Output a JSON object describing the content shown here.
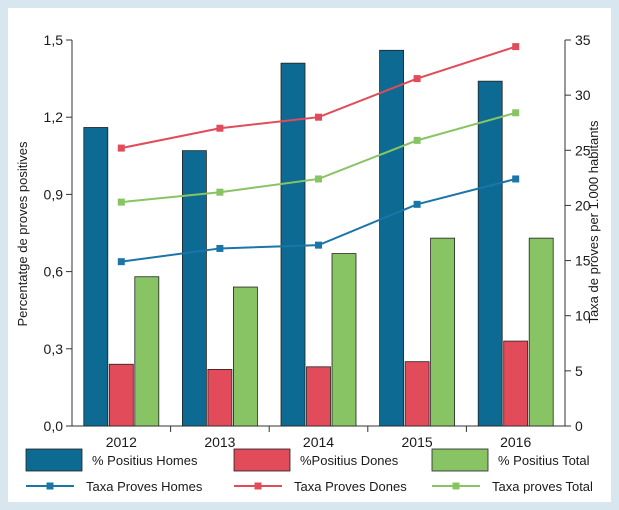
{
  "chart_data": {
    "type": "bar",
    "categories": [
      "2012",
      "2013",
      "2014",
      "2015",
      "2016"
    ],
    "y_left": {
      "label": "Percentatge de proves positives",
      "range": [
        0,
        1.5
      ],
      "ticks": [
        "0,0",
        "0,3",
        "0,6",
        "0,9",
        "1,2",
        "1,5"
      ],
      "tick_values": [
        0,
        0.3,
        0.6,
        0.9,
        1.2,
        1.5
      ]
    },
    "y_right": {
      "label": "Taxa de proves per 1.000 habitants",
      "range": [
        0,
        35
      ],
      "ticks": [
        "0",
        "5",
        "10",
        "15",
        "20",
        "25",
        "30",
        "35"
      ],
      "tick_values": [
        0,
        5,
        10,
        15,
        20,
        25,
        30,
        35
      ]
    },
    "bar_series": [
      {
        "name": "% Positius Homes",
        "color": "#0d6a93",
        "values": [
          1.16,
          1.07,
          1.41,
          1.46,
          1.34
        ]
      },
      {
        "name": "%Positius Dones",
        "color": "#e14b5a",
        "values": [
          0.24,
          0.22,
          0.23,
          0.25,
          0.33
        ]
      },
      {
        "name": "% Positius Total",
        "color": "#88c464",
        "values": [
          0.58,
          0.54,
          0.67,
          0.73,
          0.73
        ]
      }
    ],
    "line_series": [
      {
        "name": "Taxa Proves Homes",
        "color": "#1a75a8",
        "values": [
          14.9,
          16.1,
          16.4,
          20.1,
          22.4
        ]
      },
      {
        "name": "Taxa Proves Dones",
        "color": "#e14b5a",
        "values": [
          25.2,
          27.0,
          28.0,
          31.5,
          34.4
        ]
      },
      {
        "name": "Taxa proves Total",
        "color": "#88c464",
        "values": [
          20.3,
          21.2,
          22.4,
          25.9,
          28.4
        ]
      }
    ],
    "grid": false,
    "legend_position": "bottom"
  }
}
